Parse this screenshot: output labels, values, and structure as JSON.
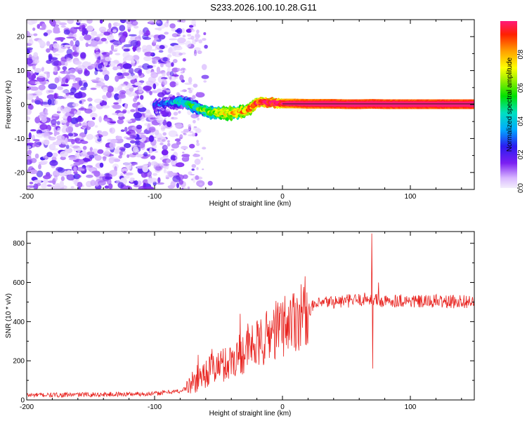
{
  "title": "S233.2026.100.10.28.G11",
  "chart_data": [
    {
      "type": "heatmap",
      "name": "spectrogram",
      "xlabel": "Height of straight line (km)",
      "ylabel": "Frequency (Hz)",
      "xlim": [
        -200,
        150
      ],
      "ylim": [
        -25,
        25
      ],
      "xticks": [
        -200,
        -100,
        0,
        100
      ],
      "yticks": [
        -20,
        -10,
        0,
        10,
        20
      ],
      "xtick_labels": [
        "-200",
        "-100",
        "0",
        "100"
      ],
      "ytick_labels": [
        "-20",
        "-10",
        "0",
        "10",
        "20"
      ],
      "colorbar": {
        "label": "Normalized spectral amplitude",
        "range": [
          0,
          1
        ],
        "ticks": [
          0.0,
          0.2,
          0.4,
          0.6,
          0.8
        ],
        "tick_labels": [
          "0.0",
          "0.2",
          "0.4",
          "0.6",
          "0.8"
        ]
      },
      "ridge": {
        "x": [
          -100,
          -90,
          -80,
          -75,
          -70,
          -65,
          -60,
          -55,
          -50,
          -45,
          -40,
          -35,
          -30,
          -25,
          -20,
          -15,
          -10,
          -5,
          0,
          10,
          20,
          30,
          40,
          50,
          60,
          70,
          80,
          90,
          100,
          110,
          120,
          130,
          140,
          150
        ],
        "freq": [
          0,
          0.5,
          1,
          0.5,
          -0.5,
          -1.2,
          -1.8,
          -2.3,
          -2.5,
          -2.6,
          -2.5,
          -2.3,
          -2,
          -1,
          0.5,
          0.8,
          0.6,
          0.4,
          0.3,
          0.3,
          0.2,
          0.2,
          0.2,
          0.1,
          0.1,
          0.2,
          0.1,
          0.1,
          0.1,
          0.1,
          0.1,
          0.1,
          0.1,
          0.1
        ],
        "amplitude": [
          0.15,
          0.2,
          0.3,
          0.35,
          0.4,
          0.45,
          0.5,
          0.55,
          0.6,
          0.6,
          0.65,
          0.65,
          0.7,
          0.75,
          0.8,
          0.85,
          0.88,
          0.9,
          0.92,
          0.95,
          0.97,
          0.98,
          0.99,
          1.0,
          1.0,
          1.0,
          1.0,
          1.0,
          1.0,
          1.0,
          1.0,
          1.0,
          1.0,
          1.0
        ]
      },
      "noise_region_x": [
        -200,
        -75
      ]
    },
    {
      "type": "line",
      "name": "snr",
      "xlabel": "Height of straight line (km)",
      "ylabel": "SNR (10 * v/v)",
      "xlim": [
        -200,
        150
      ],
      "ylim": [
        0,
        860
      ],
      "xticks": [
        -200,
        -100,
        0,
        100
      ],
      "yticks": [
        0,
        200,
        400,
        600,
        800
      ],
      "xtick_labels": [
        "-200",
        "-100",
        "0",
        "100"
      ],
      "ytick_labels": [
        "0",
        "200",
        "400",
        "600",
        "800"
      ],
      "color": "#e8231f",
      "series": [
        {
          "name": "SNR",
          "x": [
            -200,
            -180,
            -160,
            -140,
            -120,
            -100,
            -90,
            -80,
            -75,
            -70,
            -65,
            -60,
            -55,
            -50,
            -45,
            -40,
            -35,
            -30,
            -25,
            -20,
            -15,
            -10,
            -5,
            0,
            5,
            10,
            15,
            20,
            25,
            30,
            35,
            40,
            50,
            60,
            65,
            68,
            70,
            72,
            75,
            80,
            90,
            100,
            110,
            120,
            130,
            140,
            150
          ],
          "y": [
            25,
            25,
            27,
            28,
            30,
            32,
            40,
            45,
            60,
            90,
            120,
            140,
            160,
            170,
            180,
            200,
            230,
            250,
            270,
            280,
            300,
            340,
            360,
            380,
            400,
            420,
            440,
            460,
            480,
            490,
            500,
            500,
            505,
            510,
            515,
            520,
            510,
            515,
            505,
            500,
            510,
            505,
            500,
            505,
            500,
            505,
            500
          ]
        }
      ],
      "spikes": [
        {
          "x": -66,
          "y": 230
        },
        {
          "x": -55,
          "y": 260
        },
        {
          "x": -48,
          "y": 250
        },
        {
          "x": -33,
          "y": 440
        },
        {
          "x": -27,
          "y": 390
        },
        {
          "x": -18,
          "y": 370
        },
        {
          "x": 70,
          "y": 850
        },
        {
          "x": 70.5,
          "y": 160
        },
        {
          "x": 75,
          "y": 600
        }
      ]
    }
  ]
}
